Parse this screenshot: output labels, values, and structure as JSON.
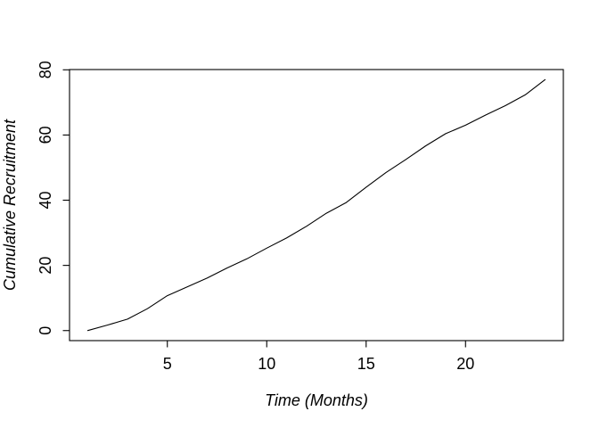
{
  "figure": {
    "background_color": "#ffffff",
    "axis_color": "#000000",
    "title": ""
  },
  "chart_data": {
    "type": "line",
    "title": "",
    "xlabel": "Time (Months)",
    "ylabel": "Cumulative Recruitment",
    "x": [
      1,
      2,
      3,
      4,
      5,
      6,
      7,
      8,
      9,
      10,
      11,
      12,
      13,
      14,
      15,
      16,
      17,
      18,
      19,
      20,
      21,
      22,
      23,
      24
    ],
    "y": [
      0,
      1.7,
      3.5,
      6.7,
      10.7,
      13.4,
      16.1,
      19.2,
      22.0,
      25.3,
      28.4,
      32.0,
      36.0,
      39.3,
      44.0,
      48.5,
      52.5,
      56.7,
      60.4,
      63.0,
      66.1,
      69.0,
      72.3,
      77.0
    ],
    "xticks": [
      5,
      10,
      15,
      20
    ],
    "yticks": [
      0,
      20,
      40,
      60,
      80
    ],
    "xtick_labels": [
      "5",
      "10",
      "15",
      "20"
    ],
    "ytick_labels": [
      "0",
      "20",
      "40",
      "60",
      "80"
    ],
    "xlim": [
      0.08,
      24.92
    ],
    "ylim": [
      -3.08,
      80.08
    ],
    "line_color": "#000000",
    "grid": false,
    "legend": null,
    "box": true
  }
}
